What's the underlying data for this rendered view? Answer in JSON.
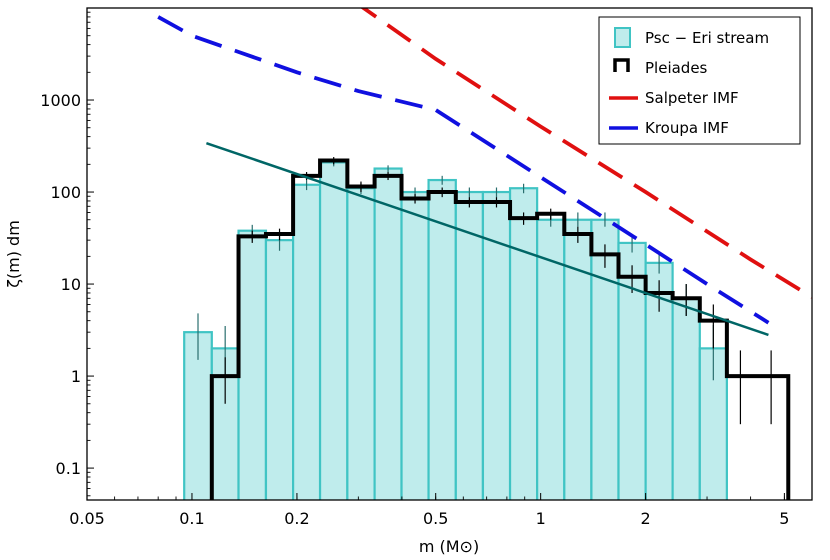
{
  "chart_data": {
    "type": "histogram",
    "xlabel": "m (M⊙)",
    "ylabel": "ζ(m) dm",
    "xscale": "log",
    "yscale": "log",
    "xlim": [
      0.05,
      6.0
    ],
    "ylim": [
      0.045,
      10000
    ],
    "xticks": [
      {
        "value": 0.05,
        "label": "0.05"
      },
      {
        "value": 0.1,
        "label": "0.1"
      },
      {
        "value": 0.2,
        "label": "0.2"
      },
      {
        "value": 0.5,
        "label": "0.5"
      },
      {
        "value": 1,
        "label": "1"
      },
      {
        "value": 2,
        "label": "2"
      },
      {
        "value": 5,
        "label": "5"
      }
    ],
    "yticks": [
      {
        "value": 0.1,
        "label": "0.1"
      },
      {
        "value": 1,
        "label": "1"
      },
      {
        "value": 10,
        "label": "10"
      },
      {
        "value": 100,
        "label": "100"
      },
      {
        "value": 1000,
        "label": "1000"
      }
    ],
    "legend": {
      "position": "top-right",
      "entries": [
        {
          "label": "Psc − Eri stream",
          "kind": "patch",
          "color": "#40c4c4"
        },
        {
          "label": "Pleiades",
          "kind": "step",
          "color": "#000000"
        },
        {
          "label": "Salpeter IMF",
          "kind": "dashed",
          "color": "#e01010"
        },
        {
          "label": "Kroupa IMF",
          "kind": "dashed",
          "color": "#1010e0"
        }
      ]
    },
    "series": [
      {
        "name": "Psc − Eri stream",
        "style": "filled-histogram",
        "bin_edges": [
          0.095,
          0.114,
          0.136,
          0.163,
          0.195,
          0.233,
          0.279,
          0.334,
          0.399,
          0.477,
          0.571,
          0.683,
          0.817,
          0.977,
          1.169,
          1.398,
          1.672,
          2.0,
          2.39,
          2.86,
          3.42
        ],
        "values": [
          3,
          2,
          38,
          30,
          120,
          210,
          110,
          180,
          100,
          135,
          100,
          100,
          110,
          50,
          50,
          50,
          28,
          17,
          7,
          2
        ],
        "errors": [
          [
            1.5,
            4.8
          ],
          [
            1.0,
            3.5
          ],
          [
            30,
            44
          ],
          [
            23,
            36
          ],
          [
            105,
            135
          ],
          [
            190,
            230
          ],
          [
            95,
            125
          ],
          [
            165,
            195
          ],
          [
            88,
            112
          ],
          [
            120,
            150
          ],
          [
            88,
            112
          ],
          [
            88,
            112
          ],
          [
            97,
            123
          ],
          [
            42,
            60
          ],
          [
            42,
            60
          ],
          [
            42,
            60
          ],
          [
            22,
            34
          ],
          [
            13,
            22
          ],
          [
            4.5,
            10
          ],
          [
            0.9,
            3.6
          ]
        ]
      },
      {
        "name": "Pleiades",
        "style": "step",
        "bin_edges": [
          0.114,
          0.136,
          0.163,
          0.195,
          0.233,
          0.279,
          0.334,
          0.399,
          0.477,
          0.571,
          0.683,
          0.817,
          0.977,
          1.169,
          1.398,
          1.672,
          2.0,
          2.39,
          2.86,
          3.42,
          4.09,
          5.13
        ],
        "values": [
          1,
          33,
          35,
          150,
          220,
          115,
          150,
          85,
          100,
          78,
          78,
          52,
          58,
          35,
          21,
          12,
          8,
          7,
          4,
          1,
          1
        ],
        "errors": [
          [
            0.5,
            1.6
          ],
          [
            28,
            38
          ],
          [
            30,
            40
          ],
          [
            135,
            165
          ],
          [
            200,
            240
          ],
          [
            100,
            130
          ],
          [
            135,
            165
          ],
          [
            75,
            95
          ],
          [
            88,
            112
          ],
          [
            68,
            88
          ],
          [
            68,
            88
          ],
          [
            44,
            60
          ],
          [
            50,
            66
          ],
          [
            28,
            42
          ],
          [
            15,
            27
          ],
          [
            8,
            16
          ],
          [
            5,
            11
          ],
          [
            4.5,
            10
          ],
          [
            2,
            6
          ],
          [
            0.3,
            1.9
          ],
          [
            0.3,
            1.9
          ]
        ]
      },
      {
        "name": "fit",
        "style": "line",
        "color": "#006666",
        "x": [
          0.11,
          4.5
        ],
        "y": [
          340,
          2.8
        ]
      },
      {
        "name": "Salpeter IMF",
        "style": "dashed-line",
        "color": "#e01010",
        "x": [
          0.29,
          0.5,
          1.0,
          2.0,
          4.0,
          6.0
        ],
        "y": [
          12000,
          2800,
          515,
          100,
          18.5,
          7.2
        ]
      },
      {
        "name": "Kroupa IMF",
        "style": "dashed-line",
        "color": "#1010e0",
        "x": [
          0.08,
          0.1,
          0.2,
          0.3,
          0.5,
          1.0,
          2.0,
          3.0,
          4.5
        ],
        "y": [
          8000,
          5000,
          2000,
          1250,
          780,
          145,
          27,
          10,
          3.8
        ]
      }
    ]
  }
}
